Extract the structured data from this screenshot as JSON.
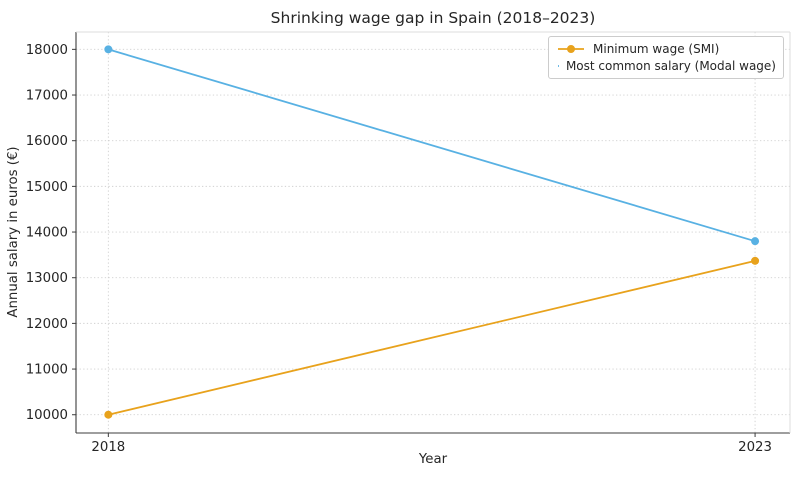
{
  "chart_data": {
    "type": "line",
    "title": "Shrinking wage gap in Spain (2018–2023)",
    "xlabel": "Year",
    "ylabel": "Annual salary in euros (€)",
    "x": [
      2018,
      2023
    ],
    "xtick_labels": [
      "2018",
      "2023"
    ],
    "yticks": [
      10000,
      11000,
      12000,
      13000,
      14000,
      15000,
      16000,
      17000,
      18000
    ],
    "xlim": [
      2017.75,
      2023.27
    ],
    "ylim": [
      9600,
      18380
    ],
    "grid": true,
    "grid_linestyle": "dotted",
    "legend_position": "upper right",
    "series": [
      {
        "name": "Minimum wage (SMI)",
        "color": "#E8A21C",
        "values": [
          10000,
          13370
        ]
      },
      {
        "name": "Most common salary (Modal wage)",
        "color": "#58B1E3",
        "values": [
          18000,
          13800
        ]
      }
    ],
    "colors": {
      "background": "#ffffff",
      "grid": "#d0d0d0",
      "spine_main": "#3c3c3c",
      "spine_light": "#dddddd",
      "text": "#262626"
    }
  }
}
